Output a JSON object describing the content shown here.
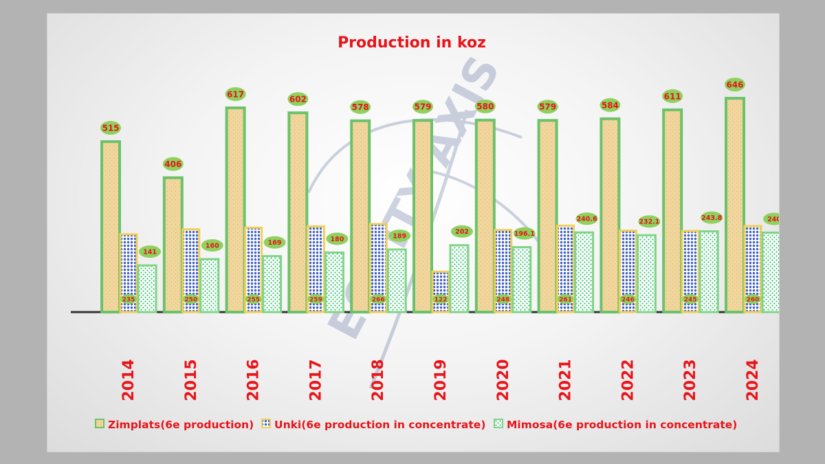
{
  "chart_data": {
    "type": "bar",
    "title": "Production in koz",
    "categories": [
      "2014",
      "2015",
      "2016",
      "2017",
      "2018",
      "2019",
      "2020",
      "2021",
      "2022",
      "2023",
      "2024"
    ],
    "series": [
      {
        "name": "Zimplats(6e production)",
        "values": [
          515,
          406,
          617,
          602,
          578,
          579,
          580,
          579,
          584,
          611,
          646
        ]
      },
      {
        "name": "Unki(6e production in concentrate)",
        "values": [
          235,
          250,
          255,
          259,
          266,
          122,
          248,
          261,
          246,
          245,
          260
        ]
      },
      {
        "name": "Mimosa(6e production in concentrate)",
        "values": [
          141,
          160,
          169,
          180,
          189,
          202,
          196.1,
          240.6,
          232.1,
          243.8,
          240
        ]
      }
    ],
    "ylim": [
      0,
      700
    ],
    "grid": false,
    "legend": "bottom",
    "xlabel": "",
    "ylabel": "",
    "watermark_text": "EQUITY AXIS",
    "colors": {
      "zimplats_fill": "#f0d59c",
      "zimplats_border": "#6cc26a",
      "unki_fill": "#3f5fc4",
      "unki_border": "#f2cf56",
      "mimosa_fill": "#ffffff",
      "mimosa_dots": "#2fbf6a",
      "mimosa_border": "#7fd486",
      "label_bubble": "#8ed15f",
      "label_text": "#e8141a",
      "axis": "#333333",
      "watermark": "#223c7a"
    }
  }
}
